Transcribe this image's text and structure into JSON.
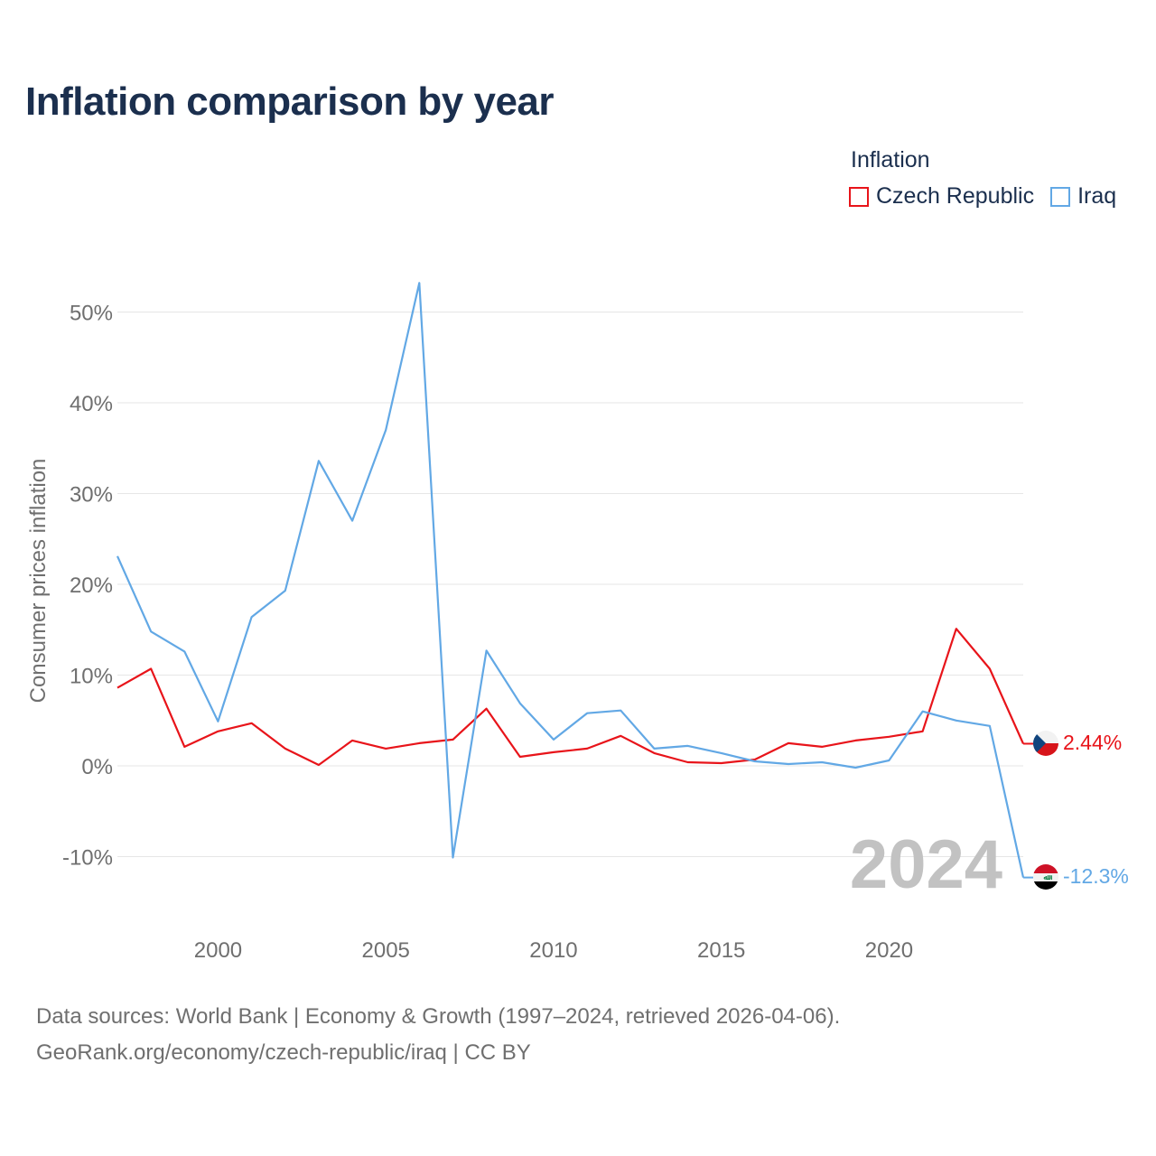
{
  "header": {
    "title": "Inflation comparison by year"
  },
  "legend": {
    "title": "Inflation",
    "items": [
      {
        "label": "Czech Republic",
        "color": "#e8141a"
      },
      {
        "label": "Iraq",
        "color": "#62a8e5"
      }
    ]
  },
  "chart_data": {
    "type": "line",
    "title": "Inflation comparison by year",
    "xlabel": "",
    "ylabel": "Consumer prices inflation",
    "x": [
      1997,
      1998,
      1999,
      2000,
      2001,
      2002,
      2003,
      2004,
      2005,
      2006,
      2007,
      2008,
      2009,
      2010,
      2011,
      2012,
      2013,
      2014,
      2015,
      2016,
      2017,
      2018,
      2019,
      2020,
      2021,
      2022,
      2023,
      2024
    ],
    "xticks": [
      2000,
      2005,
      2010,
      2015,
      2020
    ],
    "yticks": [
      -10,
      0,
      10,
      20,
      30,
      40,
      50
    ],
    "ytick_labels": [
      "-10%",
      "0%",
      "10%",
      "20%",
      "30%",
      "40%",
      "50%"
    ],
    "ylim": [
      -15,
      55
    ],
    "grid": true,
    "year_watermark": "2024",
    "series": [
      {
        "name": "Czech Republic",
        "color": "#e8141a",
        "values": [
          8.6,
          10.7,
          2.1,
          3.8,
          4.7,
          1.9,
          0.1,
          2.8,
          1.9,
          2.5,
          2.9,
          6.3,
          1.0,
          1.5,
          1.9,
          3.3,
          1.4,
          0.4,
          0.3,
          0.7,
          2.5,
          2.1,
          2.8,
          3.2,
          3.8,
          15.1,
          10.7,
          2.44
        ],
        "end_label": "2.44%",
        "flag": "czech-flag"
      },
      {
        "name": "Iraq",
        "color": "#62a8e5",
        "values": [
          23.1,
          14.8,
          12.6,
          4.9,
          16.4,
          19.3,
          33.6,
          27.0,
          37.0,
          53.2,
          -10.1,
          12.7,
          6.9,
          2.9,
          5.8,
          6.1,
          1.9,
          2.2,
          1.4,
          0.5,
          0.2,
          0.4,
          -0.2,
          0.6,
          6.0,
          5.0,
          4.4,
          -12.3
        ],
        "end_label": "-12.3%",
        "flag": "iraq-flag"
      }
    ]
  },
  "footer": {
    "source_line1": "Data sources: World Bank | Economy & Growth (1997–2024, retrieved 2026-04-06).",
    "source_line2": "GeoRank.org/economy/czech-republic/iraq | CC BY"
  }
}
